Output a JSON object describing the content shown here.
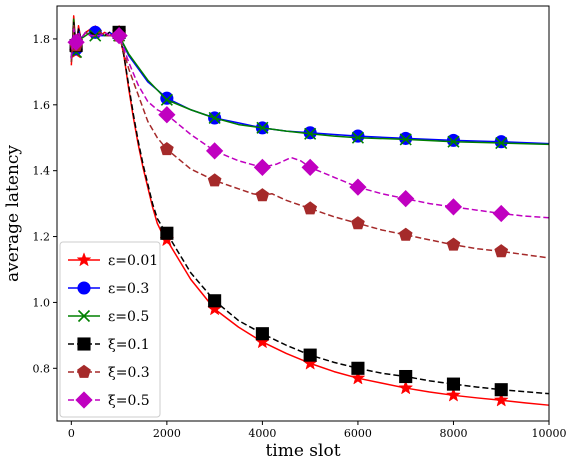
{
  "chart_data": {
    "type": "line",
    "xlabel": "time slot",
    "ylabel": "average latency",
    "xlim": [
      -300,
      10000
    ],
    "ylim": [
      0.64,
      1.9
    ],
    "xticks": [
      0,
      2000,
      4000,
      6000,
      8000,
      10000
    ],
    "yticks": [
      0.8,
      1.0,
      1.2,
      1.4,
      1.6,
      1.8
    ],
    "xtick_labels": [
      "0",
      "2000",
      "4000",
      "6000",
      "8000",
      "10000"
    ],
    "ytick_labels": [
      "0.8",
      "1.0",
      "1.2",
      "1.4",
      "1.6",
      "1.8"
    ],
    "grid": false,
    "legend_position": "lower-left",
    "series": [
      {
        "name": "ε=0.01",
        "color": "#ff0000",
        "dash": "solid",
        "marker": "star",
        "x": [
          0,
          50,
          100,
          150,
          200,
          300,
          400,
          500,
          600,
          700,
          800,
          900,
          1000,
          1100,
          1200,
          1300,
          1400,
          1500,
          1600,
          1700,
          1800,
          1900,
          2000,
          2500,
          3000,
          3500,
          4000,
          4500,
          5000,
          5500,
          6000,
          6500,
          7000,
          7500,
          8000,
          8500,
          9000,
          9500,
          10000
        ],
        "y": [
          1.72,
          1.87,
          1.76,
          1.84,
          1.8,
          1.82,
          1.83,
          1.82,
          1.81,
          1.82,
          1.81,
          1.82,
          1.82,
          1.75,
          1.65,
          1.56,
          1.48,
          1.41,
          1.35,
          1.29,
          1.24,
          1.21,
          1.19,
          1.07,
          0.98,
          0.925,
          0.88,
          0.845,
          0.815,
          0.79,
          0.77,
          0.755,
          0.74,
          0.728,
          0.718,
          0.71,
          0.703,
          0.695,
          0.688
        ],
        "marker_x": [
          100,
          500,
          1000,
          2000,
          3000,
          4000,
          5000,
          6000,
          7000,
          8000,
          9000
        ]
      },
      {
        "name": "ε=0.3",
        "color": "#0000ff",
        "dash": "solid",
        "marker": "circle",
        "x": [
          0,
          50,
          100,
          150,
          200,
          300,
          400,
          500,
          600,
          700,
          800,
          900,
          1000,
          1200,
          1400,
          1600,
          1800,
          2000,
          2500,
          3000,
          3500,
          4000,
          4500,
          5000,
          5500,
          6000,
          7000,
          8000,
          9000,
          10000
        ],
        "y": [
          1.74,
          1.85,
          1.77,
          1.83,
          1.8,
          1.82,
          1.81,
          1.82,
          1.81,
          1.81,
          1.82,
          1.81,
          1.81,
          1.75,
          1.71,
          1.67,
          1.645,
          1.62,
          1.585,
          1.56,
          1.545,
          1.53,
          1.52,
          1.515,
          1.51,
          1.505,
          1.498,
          1.492,
          1.488,
          1.482
        ],
        "marker_x": [
          100,
          500,
          1000,
          2000,
          3000,
          4000,
          5000,
          6000,
          7000,
          8000,
          9000
        ]
      },
      {
        "name": "ε=0.5",
        "color": "#008000",
        "dash": "solid",
        "marker": "x",
        "x": [
          0,
          50,
          100,
          150,
          200,
          300,
          400,
          500,
          600,
          700,
          800,
          900,
          1000,
          1200,
          1400,
          1600,
          1800,
          2000,
          2500,
          3000,
          3500,
          4000,
          4500,
          5000,
          5500,
          6000,
          7000,
          8000,
          9000,
          10000
        ],
        "y": [
          1.73,
          1.86,
          1.76,
          1.82,
          1.8,
          1.81,
          1.82,
          1.81,
          1.82,
          1.81,
          1.81,
          1.81,
          1.81,
          1.755,
          1.715,
          1.675,
          1.645,
          1.615,
          1.585,
          1.56,
          1.54,
          1.53,
          1.52,
          1.512,
          1.505,
          1.5,
          1.495,
          1.488,
          1.484,
          1.48
        ],
        "marker_x": [
          100,
          500,
          1000,
          2000,
          3000,
          4000,
          5000,
          6000,
          7000,
          8000,
          9000
        ]
      },
      {
        "name": "ξ=0.1",
        "color": "#000000",
        "dash": "dashed",
        "marker": "square",
        "x": [
          0,
          50,
          100,
          150,
          200,
          300,
          400,
          500,
          600,
          700,
          800,
          900,
          1000,
          1100,
          1200,
          1300,
          1400,
          1500,
          1600,
          1700,
          1800,
          1900,
          2000,
          2500,
          3000,
          3500,
          4000,
          4500,
          5000,
          5500,
          6000,
          6500,
          7000,
          7500,
          8000,
          8500,
          9000,
          9500,
          10000
        ],
        "y": [
          1.74,
          1.85,
          1.78,
          1.83,
          1.8,
          1.82,
          1.82,
          1.81,
          1.82,
          1.81,
          1.82,
          1.81,
          1.82,
          1.75,
          1.66,
          1.57,
          1.49,
          1.42,
          1.36,
          1.3,
          1.255,
          1.23,
          1.21,
          1.09,
          1.005,
          0.945,
          0.905,
          0.87,
          0.84,
          0.818,
          0.8,
          0.785,
          0.775,
          0.762,
          0.752,
          0.743,
          0.735,
          0.729,
          0.723
        ],
        "marker_x": [
          100,
          1000,
          2000,
          3000,
          4000,
          5000,
          6000,
          7000,
          8000,
          9000
        ]
      },
      {
        "name": "ξ=0.3",
        "color": "#a52a2a",
        "dash": "dashed",
        "marker": "pentagon",
        "x": [
          0,
          50,
          100,
          150,
          200,
          300,
          400,
          500,
          600,
          700,
          800,
          900,
          1000,
          1200,
          1400,
          1600,
          1800,
          2000,
          2500,
          3000,
          3500,
          3800,
          4000,
          4200,
          4500,
          5000,
          5500,
          6000,
          6500,
          7000,
          7500,
          8000,
          8500,
          9000,
          9500,
          10000
        ],
        "y": [
          1.73,
          1.84,
          1.78,
          1.82,
          1.8,
          1.82,
          1.81,
          1.81,
          1.82,
          1.81,
          1.81,
          1.81,
          1.81,
          1.71,
          1.63,
          1.55,
          1.5,
          1.465,
          1.405,
          1.37,
          1.345,
          1.33,
          1.325,
          1.33,
          1.31,
          1.285,
          1.26,
          1.24,
          1.22,
          1.205,
          1.19,
          1.175,
          1.163,
          1.155,
          1.145,
          1.135
        ],
        "marker_x": [
          100,
          1000,
          2000,
          3000,
          4000,
          5000,
          6000,
          7000,
          8000,
          9000
        ]
      },
      {
        "name": "ξ=0.5",
        "color": "#c000c0",
        "dash": "dashed",
        "marker": "diamond",
        "x": [
          0,
          50,
          100,
          150,
          200,
          300,
          400,
          500,
          600,
          700,
          800,
          900,
          1000,
          1200,
          1400,
          1600,
          1800,
          2000,
          2500,
          3000,
          3500,
          4000,
          4300,
          4600,
          4800,
          5000,
          5500,
          6000,
          6500,
          7000,
          7500,
          8000,
          8500,
          9000,
          9500,
          10000
        ],
        "y": [
          1.74,
          1.83,
          1.79,
          1.82,
          1.8,
          1.82,
          1.81,
          1.81,
          1.81,
          1.82,
          1.81,
          1.81,
          1.81,
          1.73,
          1.66,
          1.61,
          1.585,
          1.57,
          1.51,
          1.46,
          1.43,
          1.41,
          1.42,
          1.44,
          1.43,
          1.41,
          1.38,
          1.35,
          1.33,
          1.315,
          1.3,
          1.29,
          1.28,
          1.27,
          1.262,
          1.257
        ],
        "marker_x": [
          100,
          1000,
          2000,
          3000,
          4000,
          5000,
          6000,
          7000,
          8000,
          9000
        ]
      }
    ]
  }
}
